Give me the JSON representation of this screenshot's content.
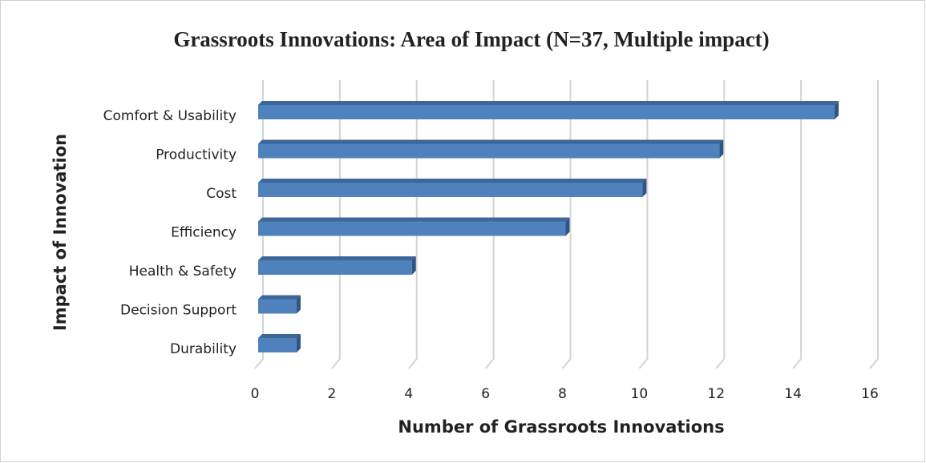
{
  "chart_data": {
    "type": "bar",
    "orientation": "horizontal",
    "title": "Grassroots Innovations: Area of Impact (N=37, Multiple impact)",
    "x_label": "Number of Grassroots Innovations",
    "y_label": "Impact of Innovation",
    "categories": [
      "Comfort & Usability",
      "Productivity",
      "Cost",
      "Efficiency",
      "Health & Safety",
      "Decision Support",
      "Durability"
    ],
    "values": [
      15,
      12,
      10,
      8,
      4,
      1,
      1
    ],
    "color": "#4f81bd",
    "xlim": [
      0,
      16
    ],
    "xticks": [
      0,
      2,
      4,
      6,
      8,
      10,
      12,
      14,
      16
    ],
    "grid": true
  }
}
